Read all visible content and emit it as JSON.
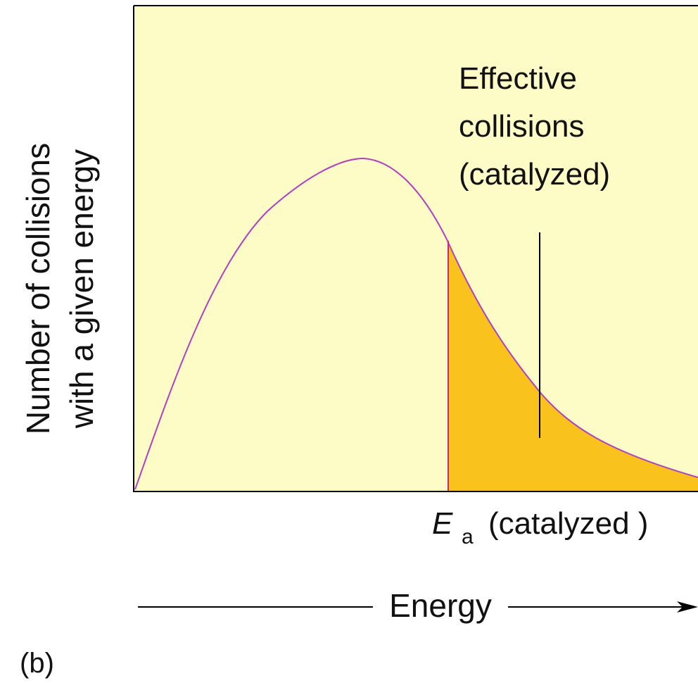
{
  "y_axis_label": [
    "Number of collisions",
    "with a given energy"
  ],
  "annotation": [
    "Effective",
    "collisions",
    "(catalyzed)"
  ],
  "threshold_label": {
    "symbol": "E",
    "subscript": "a",
    "text": "(catalyzed )"
  },
  "x_axis_label": "Energy",
  "panel_label": "(b)"
}
